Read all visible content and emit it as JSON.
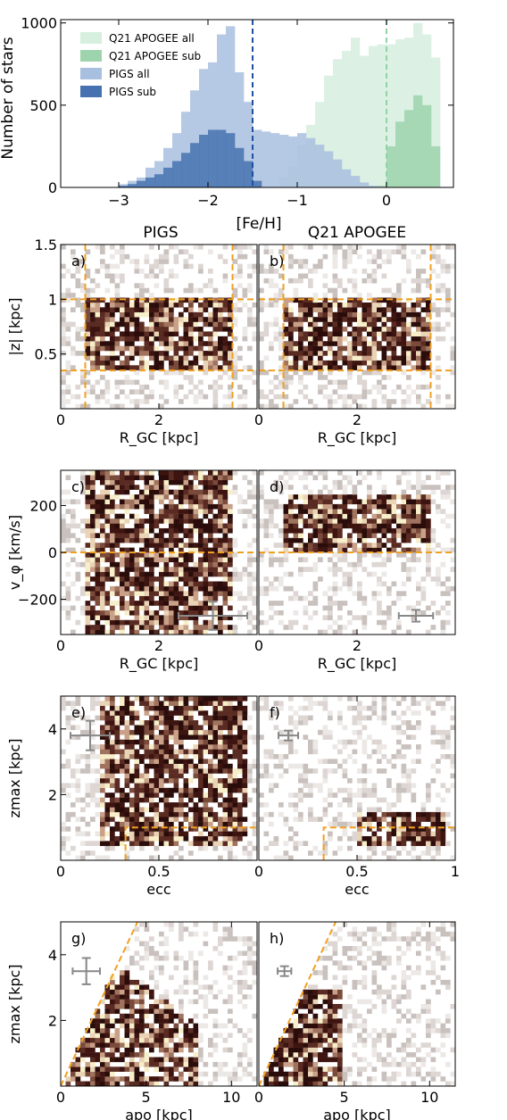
{
  "chart_data": [
    {
      "id": "hist",
      "type": "bar",
      "xlabel": "[Fe/H]",
      "ylabel": "Number of stars",
      "xlim": [
        -3.65,
        0.75
      ],
      "ylim": [
        0,
        1020
      ],
      "xticks": [
        -3,
        -2,
        -1,
        0
      ],
      "yticks": [
        0,
        500,
        1000
      ],
      "legend_position": "upper-left",
      "bin_width": 0.1,
      "x": [
        -3.0,
        -2.9,
        -2.8,
        -2.7,
        -2.6,
        -2.5,
        -2.4,
        -2.3,
        -2.2,
        -2.1,
        -2.0,
        -1.9,
        -1.8,
        -1.7,
        -1.6,
        -1.5,
        -1.4,
        -1.3,
        -1.2,
        -1.1,
        -1.0,
        -0.9,
        -0.8,
        -0.7,
        -0.6,
        -0.5,
        -0.4,
        -0.3,
        -0.2,
        -0.1,
        0.0,
        0.1,
        0.2,
        0.3,
        0.4,
        0.5
      ],
      "series": [
        {
          "name": "Q21 APOGEE all",
          "color": "#d6efdf",
          "values": [
            0,
            0,
            0,
            0,
            0,
            0,
            0,
            0,
            0,
            0,
            0,
            0,
            0,
            0,
            0,
            0,
            0,
            0,
            60,
            130,
            260,
            380,
            520,
            680,
            780,
            830,
            910,
            800,
            860,
            870,
            870,
            900,
            910,
            1000,
            930,
            790
          ]
        },
        {
          "name": "Q21 APOGEE sub",
          "color": "#9ed4ad",
          "values": [
            0,
            0,
            0,
            0,
            0,
            0,
            0,
            0,
            0,
            0,
            0,
            0,
            0,
            0,
            0,
            0,
            0,
            0,
            0,
            0,
            0,
            0,
            0,
            0,
            0,
            0,
            0,
            0,
            0,
            10,
            250,
            400,
            470,
            560,
            500,
            250
          ]
        },
        {
          "name": "PIGS all",
          "color": "#a9bfdf",
          "values": [
            20,
            40,
            60,
            120,
            160,
            240,
            330,
            460,
            590,
            720,
            760,
            930,
            980,
            700,
            520,
            350,
            340,
            330,
            320,
            310,
            330,
            300,
            260,
            220,
            170,
            110,
            70,
            30,
            10,
            0,
            0,
            0,
            0,
            0,
            0,
            0
          ]
        },
        {
          "name": "PIGS sub",
          "color": "#4772b0",
          "values": [
            10,
            20,
            40,
            60,
            80,
            120,
            160,
            210,
            270,
            320,
            350,
            350,
            330,
            240,
            160,
            40,
            0,
            0,
            0,
            0,
            0,
            0,
            0,
            0,
            0,
            0,
            0,
            0,
            0,
            0,
            0,
            0,
            0,
            0,
            0,
            0
          ]
        }
      ],
      "vlines": [
        {
          "x": -1.5,
          "color": "#1f4fa0"
        },
        {
          "x": 0.0,
          "color": "#8fd3a6"
        }
      ]
    },
    {
      "id": "a",
      "type": "heatmap",
      "panel_label": "a)",
      "column_title": "PIGS",
      "xlabel": "R_GC [kpc]",
      "ylabel": "|z| [kpc]",
      "xlim": [
        0,
        4
      ],
      "ylim": [
        0,
        1.5
      ],
      "xticks": [
        0,
        2
      ],
      "yticks": [
        0.5,
        1.0,
        1.5
      ],
      "cuts": {
        "x": [
          0.5,
          3.5
        ],
        "y": [
          0.35,
          1.0
        ]
      },
      "core": {
        "x": [
          0.5,
          3.5
        ],
        "y": [
          0.35,
          1.0
        ]
      }
    },
    {
      "id": "b",
      "type": "heatmap",
      "panel_label": "b)",
      "column_title": "Q21 APOGEE",
      "xlabel": "R_GC [kpc]",
      "xlim": [
        0,
        4
      ],
      "ylim": [
        0,
        1.5
      ],
      "xticks": [
        0,
        2
      ],
      "cuts": {
        "x": [
          0.5,
          3.5
        ],
        "y": [
          0.35,
          1.0
        ]
      },
      "core": {
        "x": [
          0.5,
          3.5
        ],
        "y": [
          0.35,
          1.0
        ]
      }
    },
    {
      "id": "c",
      "type": "heatmap",
      "panel_label": "c)",
      "xlabel": "R_GC [kpc]",
      "ylabel": "v_φ [km/s]",
      "xlim": [
        0,
        4
      ],
      "ylim": [
        -350,
        350
      ],
      "xticks": [
        0,
        2
      ],
      "yticks": [
        -200,
        0,
        200
      ],
      "hline": 0,
      "errorbar": {
        "x": 3.1,
        "y": -270,
        "dx": 0.7,
        "dy": 60
      },
      "core": {
        "x": [
          0.5,
          3.5
        ],
        "y": [
          -350,
          350
        ]
      }
    },
    {
      "id": "d",
      "type": "heatmap",
      "panel_label": "d)",
      "xlabel": "R_GC [kpc]",
      "xlim": [
        0,
        4
      ],
      "ylim": [
        -350,
        350
      ],
      "xticks": [
        0,
        2
      ],
      "hline": 0,
      "errorbar": {
        "x": 3.2,
        "y": -270,
        "dx": 0.35,
        "dy": 25
      },
      "core": {
        "x": [
          0.5,
          3.5
        ],
        "y": [
          0,
          250
        ]
      }
    },
    {
      "id": "e",
      "type": "heatmap",
      "panel_label": "e)",
      "xlabel": "ecc",
      "ylabel": "zmax [kpc]",
      "xlim": [
        0,
        1
      ],
      "ylim": [
        0,
        5
      ],
      "xticks": [
        0,
        0.5
      ],
      "yticks": [
        2,
        4
      ],
      "cut_box": {
        "x": 0.33,
        "y": 1.0
      },
      "errorbar": {
        "x": 0.15,
        "y": 3.8,
        "dx": 0.1,
        "dy": 0.45
      },
      "core": {
        "x": [
          0.2,
          0.95
        ],
        "y": [
          0.5,
          5
        ]
      }
    },
    {
      "id": "f",
      "type": "heatmap",
      "panel_label": "f)",
      "xlabel": "ecc",
      "xlim": [
        0,
        1
      ],
      "ylim": [
        0,
        5
      ],
      "xticks": [
        0,
        0.5,
        1.0
      ],
      "cut_box": {
        "x": 0.33,
        "y": 1.0
      },
      "errorbar": {
        "x": 0.15,
        "y": 3.8,
        "dx": 0.05,
        "dy": 0.15
      },
      "core": {
        "x": [
          0.5,
          0.95
        ],
        "y": [
          0.4,
          1.5
        ]
      }
    },
    {
      "id": "g",
      "type": "heatmap",
      "panel_label": "g)",
      "xlabel": "apo [kpc]",
      "ylabel": "zmax [kpc]",
      "xlim": [
        0,
        11.5
      ],
      "ylim": [
        0,
        5
      ],
      "xticks": [
        0,
        5,
        10
      ],
      "yticks": [
        2,
        4
      ],
      "diag_line": [
        [
          0,
          0
        ],
        [
          4.5,
          5
        ]
      ],
      "errorbar": {
        "x": 1.5,
        "y": 3.5,
        "dx": 0.8,
        "dy": 0.4
      },
      "core": {
        "x": [
          0.3,
          8
        ],
        "y": [
          0,
          4.5
        ]
      }
    },
    {
      "id": "h",
      "type": "heatmap",
      "panel_label": "h)",
      "xlabel": "apo [kpc]",
      "xlim": [
        0,
        11.5
      ],
      "ylim": [
        0,
        5
      ],
      "xticks": [
        0,
        5,
        10
      ],
      "diag_line": [
        [
          0,
          0
        ],
        [
          4.5,
          5
        ]
      ],
      "errorbar": {
        "x": 1.5,
        "y": 3.5,
        "dx": 0.4,
        "dy": 0.15
      },
      "core": {
        "x": [
          0.3,
          5
        ],
        "y": [
          0,
          3
        ]
      }
    }
  ]
}
